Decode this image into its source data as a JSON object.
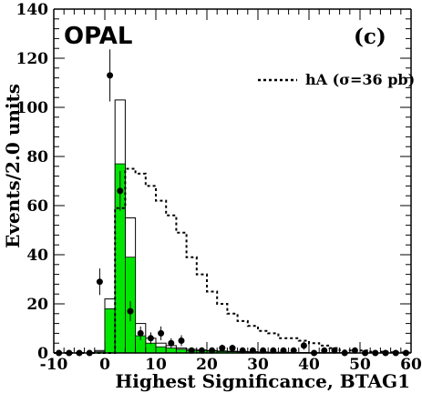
{
  "chart_data": {
    "type": "bar",
    "experiment_label": "OPAL",
    "panel_label": "(c)",
    "xlabel": "Highest Significance, BTAG1",
    "ylabel": "Events/2.0 units",
    "xlim": [
      -10,
      60
    ],
    "ylim": [
      0,
      140
    ],
    "bin_width": 2,
    "x_tick_labels": [
      -10,
      0,
      10,
      20,
      30,
      40,
      50,
      60
    ],
    "y_tick_labels": [
      0,
      20,
      40,
      60,
      80,
      100,
      120,
      140
    ],
    "legend": {
      "label": "hA (σ=36 pb)",
      "line_style": "dotted",
      "placement": "top-right"
    },
    "colors": {
      "green_fill": "#00e600",
      "line": "#000000"
    },
    "series": [
      {
        "kind": "hatched-green-histogram",
        "bin_low_edges": [
          -10,
          -8,
          -6,
          -4,
          -2,
          0,
          2,
          4,
          6,
          8,
          10,
          12,
          14,
          16,
          18,
          20,
          22,
          24,
          26,
          28,
          30,
          32,
          34,
          36,
          38,
          40,
          42,
          44,
          46,
          48,
          50,
          52,
          54,
          56,
          58
        ],
        "values": [
          0,
          0,
          0,
          0,
          0.5,
          18,
          77,
          39,
          7,
          4,
          2.5,
          2,
          1.5,
          1,
          1,
          0.8,
          0.6,
          0.5,
          0.4,
          0.3,
          0.3,
          0.2,
          0.2,
          0.2,
          0.1,
          0.1,
          0.1,
          0.1,
          0.1,
          0,
          0,
          0,
          0,
          0,
          0
        ]
      },
      {
        "kind": "open-total-histogram",
        "bin_low_edges": [
          -10,
          -8,
          -6,
          -4,
          -2,
          0,
          2,
          4,
          6,
          8,
          10,
          12,
          14,
          16,
          18,
          20,
          22,
          24,
          26,
          28,
          30,
          32,
          34,
          36,
          38,
          40,
          42,
          44,
          46,
          48,
          50,
          52,
          54,
          56,
          58
        ],
        "values": [
          0,
          0,
          0,
          0,
          1,
          22,
          103,
          55,
          12,
          6,
          4,
          3,
          2,
          1.5,
          1.2,
          1,
          0.8,
          0.7,
          0.6,
          0.5,
          0.4,
          0.3,
          0.3,
          0.2,
          0.2,
          0.1,
          0.1,
          0.1,
          0.1,
          0,
          0,
          0,
          0,
          0,
          0
        ]
      },
      {
        "kind": "data-points",
        "x": [
          -9,
          -7,
          -5,
          -3,
          -1,
          1,
          3,
          5,
          7,
          9,
          11,
          13,
          15,
          17,
          19,
          21,
          23,
          25,
          27,
          29,
          31,
          33,
          35,
          37,
          39,
          41,
          43,
          45,
          47,
          49,
          51,
          53,
          55,
          57,
          59
        ],
        "y": [
          0,
          0,
          0,
          0,
          29,
          113,
          66,
          17,
          8,
          6,
          8,
          4,
          5,
          1,
          1,
          1,
          2,
          2,
          1,
          1,
          1,
          1,
          1,
          1,
          3,
          0,
          1,
          1,
          0,
          1,
          0,
          0,
          0,
          0,
          0
        ],
        "errors": [
          0,
          0,
          0,
          0,
          5.4,
          10.6,
          8.1,
          4.1,
          2.8,
          2.4,
          2.8,
          2,
          2.2,
          1,
          1,
          1,
          1.4,
          1.4,
          1,
          1,
          1,
          1,
          1,
          1,
          1.7,
          0,
          1,
          1,
          0,
          1,
          0,
          0,
          0,
          0,
          0
        ]
      },
      {
        "kind": "dotted-signal-histogram",
        "name": "hA (σ=36 pb)",
        "bin_low_edges": [
          -10,
          -8,
          -6,
          -4,
          -2,
          0,
          2,
          4,
          6,
          8,
          10,
          12,
          14,
          16,
          18,
          20,
          22,
          24,
          26,
          28,
          30,
          32,
          34,
          36,
          38,
          40,
          42,
          44,
          46,
          48,
          50,
          52,
          54,
          56,
          58
        ],
        "values": [
          0,
          0,
          0,
          0,
          0,
          0,
          59,
          75,
          73,
          68,
          62,
          56,
          49,
          39,
          32,
          25,
          20,
          16,
          13,
          11,
          9,
          8,
          6,
          6,
          5,
          4,
          3,
          2,
          1,
          1,
          1,
          0.5,
          0.5,
          0.3,
          0.2
        ]
      }
    ]
  }
}
